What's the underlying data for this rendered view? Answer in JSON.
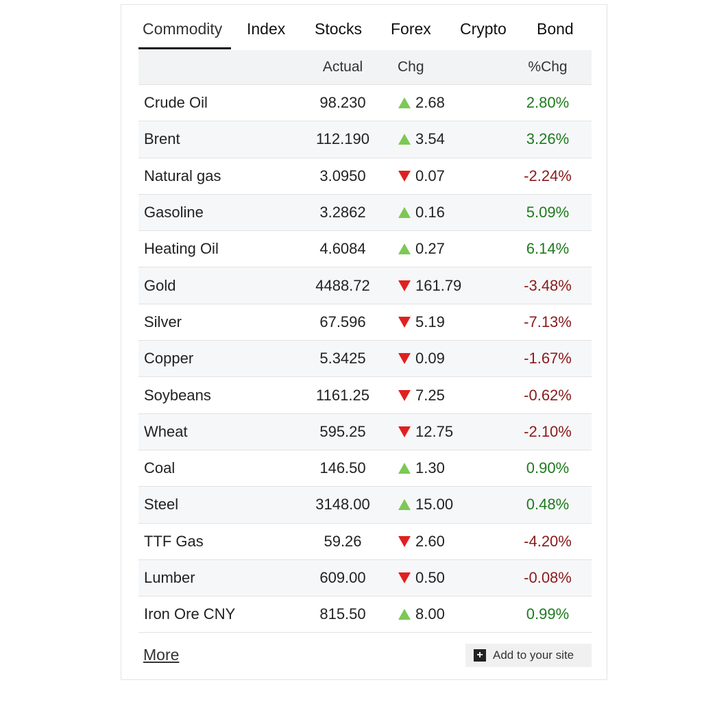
{
  "tabs": [
    "Commodity",
    "Index",
    "Stocks",
    "Forex",
    "Crypto",
    "Bond"
  ],
  "active_tab": 0,
  "table": {
    "columns": [
      "Actual",
      "Chg",
      "%Chg"
    ],
    "rows": [
      {
        "name": "Crude Oil",
        "actual": "98.230",
        "direction": "up",
        "chg": "2.68",
        "pct": "2.80%"
      },
      {
        "name": "Brent",
        "actual": "112.190",
        "direction": "up",
        "chg": "3.54",
        "pct": "3.26%"
      },
      {
        "name": "Natural gas",
        "actual": "3.0950",
        "direction": "down",
        "chg": "0.07",
        "pct": "-2.24%"
      },
      {
        "name": "Gasoline",
        "actual": "3.2862",
        "direction": "up",
        "chg": "0.16",
        "pct": "5.09%"
      },
      {
        "name": "Heating Oil",
        "actual": "4.6084",
        "direction": "up",
        "chg": "0.27",
        "pct": "6.14%"
      },
      {
        "name": "Gold",
        "actual": "4488.72",
        "direction": "down",
        "chg": "161.79",
        "pct": "-3.48%"
      },
      {
        "name": "Silver",
        "actual": "67.596",
        "direction": "down",
        "chg": "5.19",
        "pct": "-7.13%"
      },
      {
        "name": "Copper",
        "actual": "5.3425",
        "direction": "down",
        "chg": "0.09",
        "pct": "-1.67%"
      },
      {
        "name": "Soybeans",
        "actual": "1161.25",
        "direction": "down",
        "chg": "7.25",
        "pct": "-0.62%"
      },
      {
        "name": "Wheat",
        "actual": "595.25",
        "direction": "down",
        "chg": "12.75",
        "pct": "-2.10%"
      },
      {
        "name": "Coal",
        "actual": "146.50",
        "direction": "up",
        "chg": "1.30",
        "pct": "0.90%"
      },
      {
        "name": "Steel",
        "actual": "3148.00",
        "direction": "up",
        "chg": "15.00",
        "pct": "0.48%"
      },
      {
        "name": "TTF Gas",
        "actual": "59.26",
        "direction": "down",
        "chg": "2.60",
        "pct": "-4.20%"
      },
      {
        "name": "Lumber",
        "actual": "609.00",
        "direction": "down",
        "chg": "0.50",
        "pct": "-0.08%"
      },
      {
        "name": "Iron Ore CNY",
        "actual": "815.50",
        "direction": "up",
        "chg": "8.00",
        "pct": "0.99%"
      }
    ]
  },
  "footer": {
    "more": "More",
    "add_button": "Add to your site"
  }
}
